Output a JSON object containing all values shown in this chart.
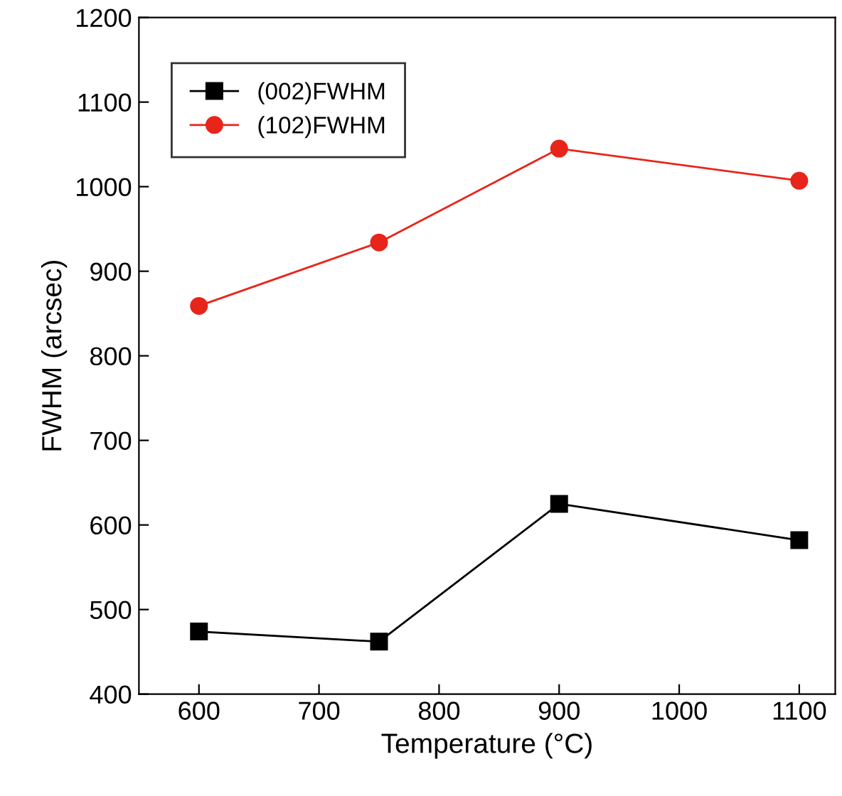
{
  "chart_data": {
    "type": "line",
    "xlabel": "Temperature (°C)",
    "ylabel": "FWHM (arcsec)",
    "x": [
      600,
      750,
      900,
      1100
    ],
    "series": [
      {
        "name": "(002)FWHM",
        "color": "#000000",
        "values": [
          474,
          462,
          625,
          582
        ],
        "marker": "square"
      },
      {
        "name": "(102)FWHM",
        "color": "#e8251b",
        "values": [
          859,
          934,
          1045,
          1007
        ],
        "marker": "circle"
      }
    ],
    "xlim": [
      550,
      1130
    ],
    "xticks": [
      600,
      700,
      800,
      900,
      1000,
      1100
    ],
    "ylim": [
      400,
      1200
    ],
    "yticks": [
      400,
      500,
      600,
      700,
      800,
      900,
      1000,
      1100,
      1200
    ],
    "grid": false,
    "legend": "top left",
    "line_style": "solid"
  }
}
